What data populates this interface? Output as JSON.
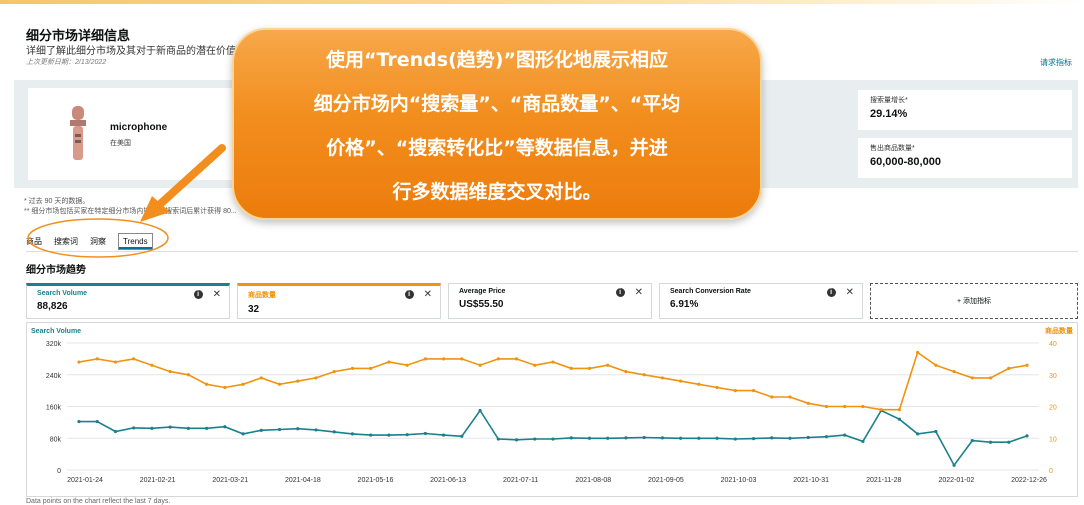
{
  "header": {
    "title": "细分市场详细信息",
    "subtitle": "详细了解此细分市场及其对于新商品的潜在价值。",
    "updated": "上次更新日期：2/13/2022",
    "request_link": "请求指标"
  },
  "product": {
    "name": "microphone",
    "location": "在美国"
  },
  "stats": [
    {
      "label": "搜索量增长*",
      "value": "29.14%"
    },
    {
      "label": "售出商品数量*",
      "value": "60,000-80,000"
    }
  ],
  "notes": {
    "line1": "* 过去 90 天的数据。",
    "line2": "** 细分市场包括买家在特定细分市场内搜索... 搜索词后累计获得 80..."
  },
  "tabs": [
    "商品",
    "搜索词",
    "洞察",
    "Trends"
  ],
  "active_tab": "Trends",
  "section_title": "细分市场趋势",
  "metrics": [
    {
      "label": "Search Volume",
      "value": "88,826"
    },
    {
      "label": "商品数量",
      "value": "32"
    },
    {
      "label": "Average Price",
      "value": "US$55.50"
    },
    {
      "label": "Search Conversion Rate",
      "value": "6.91%"
    }
  ],
  "add_metric": "+ 添加指标",
  "icons": {
    "info": "info-icon",
    "close": "close-icon"
  },
  "colors": {
    "search_volume": "#1b7f8c",
    "product_count": "#f0930e",
    "callout": "#f28e1e"
  },
  "footnote": "Data points on the chart reflect the last 7 days.",
  "callout": {
    "lines": [
      "使用“Trends(趋势)”图形化地展示相应",
      "细分市场内“搜索量”、“商品数量”、“平均",
      "价格”、“搜索转化比”等数据信息，并进",
      "行多数据维度交叉对比。"
    ]
  },
  "chart_data": {
    "type": "line",
    "ylabel_left": "Search Volume",
    "ylabel_right": "商品数量",
    "ylim_left": [
      0,
      320000
    ],
    "ylim_right": [
      0,
      40
    ],
    "yticks_left": [
      "0",
      "80k",
      "160k",
      "240k",
      "320k"
    ],
    "yticks_right": [
      "0",
      "10",
      "20",
      "30",
      "40"
    ],
    "xtick_labels": [
      "2021-01-24",
      "2021-02-21",
      "2021-03-21",
      "2021-04-18",
      "2021-05-16",
      "2021-06-13",
      "2021-07-11",
      "2021-08-08",
      "2021-09-05",
      "2021-10-03",
      "2021-10-31",
      "2021-11-28",
      "2022-01-02",
      "2022-12-26"
    ],
    "grid": true,
    "series": [
      {
        "name": "Search Volume",
        "axis": "left",
        "values": [
          122000,
          122000,
          97000,
          106000,
          105000,
          108000,
          105000,
          105000,
          109000,
          91000,
          100000,
          102000,
          104000,
          101000,
          96000,
          91000,
          88000,
          88000,
          89000,
          92000,
          88000,
          85000,
          150000,
          78000,
          76000,
          78000,
          78000,
          81000,
          80000,
          80000,
          81000,
          82000,
          81000,
          80000,
          80000,
          80000,
          78000,
          79000,
          81000,
          80000,
          82000,
          84000,
          88000,
          72000,
          150000,
          128000,
          91000,
          97000,
          12000,
          74000,
          70000,
          70000,
          86000
        ]
      },
      {
        "name": "商品数量",
        "axis": "right",
        "values": [
          34,
          35,
          34,
          35,
          33,
          31,
          30,
          27,
          26,
          27,
          29,
          27,
          28,
          29,
          31,
          32,
          32,
          34,
          33,
          35,
          35,
          35,
          33,
          35,
          35,
          33,
          34,
          32,
          32,
          33,
          31,
          30,
          29,
          28,
          27,
          26,
          25,
          25,
          23,
          23,
          21,
          20,
          20,
          20,
          19,
          19,
          37,
          33,
          31,
          29,
          29,
          32,
          33
        ]
      }
    ]
  }
}
